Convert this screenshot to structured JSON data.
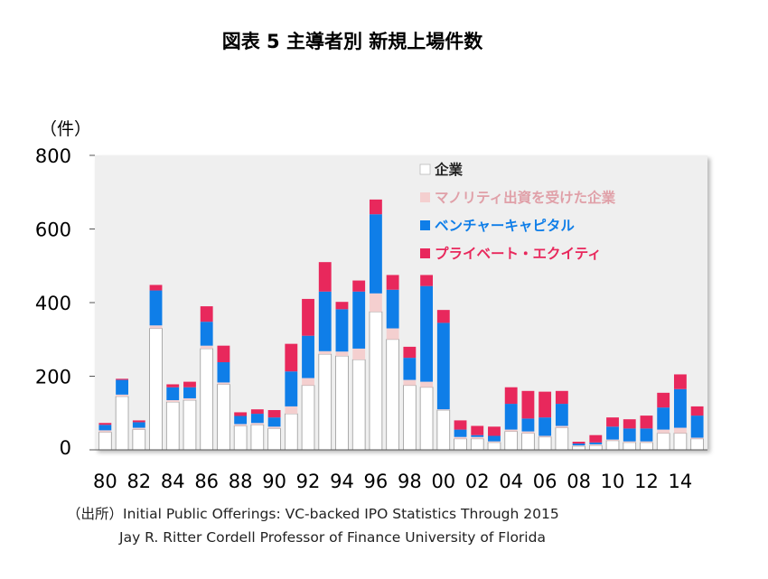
{
  "title": "図表 5 主導者別 新規上場件数",
  "unit_label": "（件）",
  "source_line1": "（出所）Initial Public Offerings: VC-backed IPO Statistics Through 2015",
  "source_line2": "Jay R. Ritter Cordell Professor of Finance University of Florida",
  "chart_data": {
    "type": "bar",
    "stacked": true,
    "grid": false,
    "legend_position": "inside top-right",
    "ylim": [
      0,
      800
    ],
    "yticks": [
      0,
      200,
      400,
      600,
      800
    ],
    "xtick_labels": [
      "80",
      "82",
      "84",
      "86",
      "88",
      "90",
      "92",
      "94",
      "96",
      "98",
      "00",
      "02",
      "04",
      "06",
      "08",
      "10",
      "12",
      "14"
    ],
    "categories": [
      "80",
      "81",
      "82",
      "83",
      "84",
      "85",
      "86",
      "87",
      "88",
      "89",
      "90",
      "91",
      "92",
      "93",
      "94",
      "95",
      "96",
      "97",
      "98",
      "99",
      "00",
      "01",
      "02",
      "03",
      "04",
      "05",
      "06",
      "07",
      "08",
      "09",
      "10",
      "11",
      "12",
      "13",
      "14",
      "15"
    ],
    "series": [
      {
        "name": "企業",
        "color": "#ffffff",
        "values": [
          48,
          145,
          55,
          330,
          130,
          135,
          275,
          178,
          65,
          68,
          58,
          98,
          175,
          260,
          255,
          245,
          375,
          300,
          175,
          170,
          108,
          30,
          30,
          20,
          50,
          45,
          35,
          60,
          10,
          12,
          25,
          20,
          20,
          45,
          45,
          30
        ]
      },
      {
        "name": "マノリティ出資を受けた企業",
        "color": "#f4cfcf",
        "values": [
          5,
          5,
          5,
          8,
          5,
          5,
          8,
          5,
          5,
          5,
          5,
          20,
          20,
          8,
          12,
          30,
          50,
          30,
          15,
          15,
          2,
          5,
          5,
          3,
          5,
          5,
          3,
          5,
          2,
          3,
          3,
          3,
          3,
          10,
          15,
          3
        ]
      },
      {
        "name": "ベンチャーキャピタル",
        "color": "#0f7ee8",
        "values": [
          15,
          40,
          15,
          95,
          35,
          30,
          65,
          55,
          22,
          25,
          25,
          95,
          115,
          162,
          115,
          155,
          215,
          105,
          60,
          260,
          235,
          20,
          5,
          15,
          70,
          35,
          50,
          60,
          5,
          5,
          35,
          35,
          35,
          60,
          105,
          60
        ]
      },
      {
        "name": "プライベート・エクイティ",
        "color": "#e8285c",
        "values": [
          5,
          3,
          5,
          15,
          8,
          15,
          42,
          45,
          10,
          12,
          20,
          75,
          100,
          80,
          20,
          30,
          40,
          40,
          30,
          30,
          35,
          25,
          25,
          25,
          45,
          75,
          70,
          35,
          5,
          20,
          25,
          25,
          35,
          40,
          40,
          25
        ]
      }
    ]
  }
}
